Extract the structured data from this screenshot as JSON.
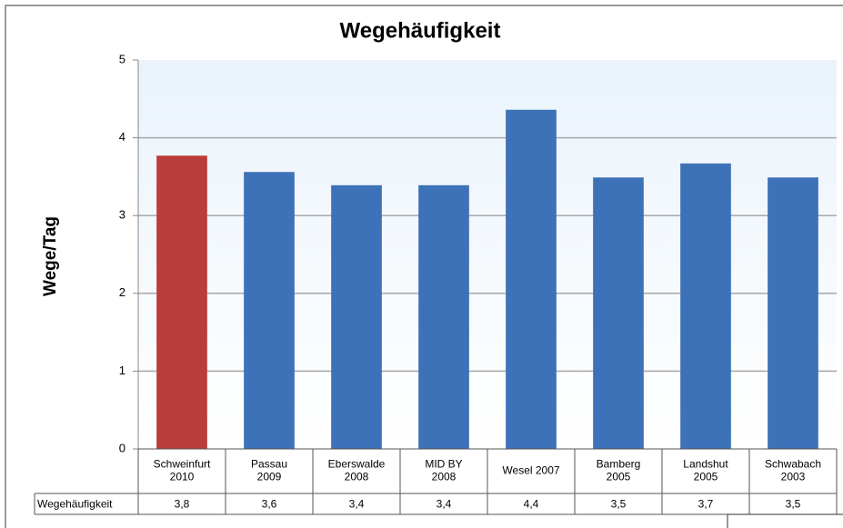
{
  "chart_data": {
    "type": "bar",
    "title": "Wegehäufigkeit",
    "y_label": "Wege/Tag",
    "categories": [
      [
        "Schweinfurt",
        "2010"
      ],
      [
        "Passau",
        "2009"
      ],
      [
        "Eberswalde",
        "2008"
      ],
      [
        "MID BY",
        "2008"
      ],
      [
        "Wesel 2007"
      ],
      [
        "Bamberg",
        "2005"
      ],
      [
        "Landshut",
        "2005"
      ],
      [
        "Schwabach",
        "2003"
      ]
    ],
    "series": [
      {
        "name": "Wegehäufigkeit",
        "values": [
          3.77,
          3.56,
          3.39,
          3.39,
          4.36,
          3.49,
          3.67,
          3.49
        ],
        "value_labels": [
          "3,8",
          "3,6",
          "3,4",
          "3,4",
          "4,4",
          "3,5",
          "3,7",
          "3,5"
        ],
        "colors": [
          "#b93d3b",
          "#3d72b8",
          "#3d72b8",
          "#3d72b8",
          "#3d72b8",
          "#3d72b8",
          "#3d72b8",
          "#3d72b8"
        ]
      }
    ],
    "ylim": [
      0,
      5
    ],
    "yticks": [
      0,
      1,
      2,
      3,
      4,
      5
    ],
    "grid": true
  }
}
